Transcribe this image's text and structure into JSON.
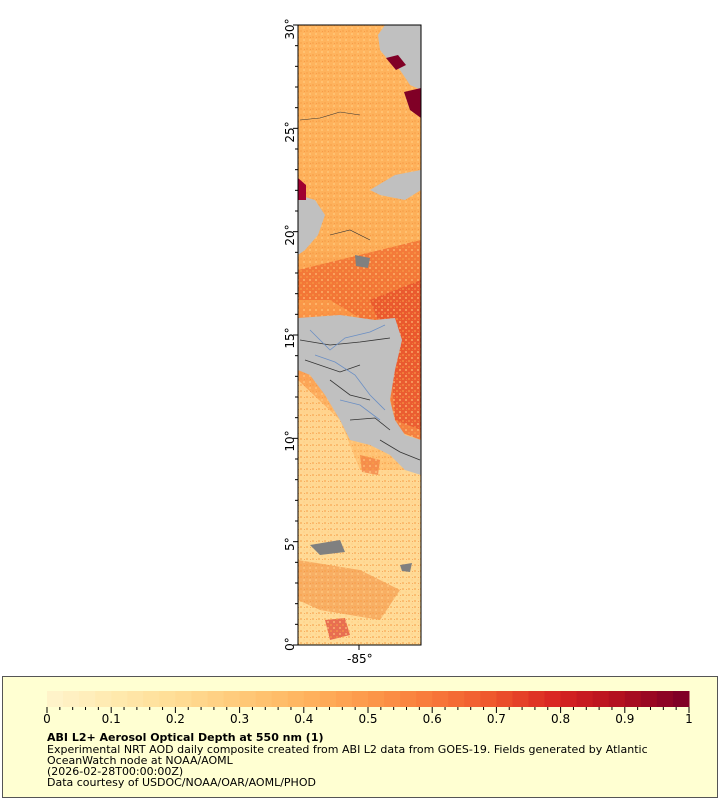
{
  "map": {
    "y_axis_labels": [
      "30°",
      "25°",
      "20°",
      "15°",
      "10°",
      "5°",
      "0°"
    ],
    "x_axis_labels": [
      "-85°"
    ],
    "land_color": "#c0c0c0",
    "border_color": "#333333",
    "river_color": "#6b8fc4"
  },
  "legend": {
    "ticks": [
      "0",
      "0.1",
      "0.2",
      "0.3",
      "0.4",
      "0.5",
      "0.6",
      "0.7",
      "0.8",
      "0.9",
      "1"
    ],
    "colors": [
      "#fff3c9",
      "#ffe9ad",
      "#ffdc93",
      "#ffc978",
      "#ffb45e",
      "#fd994a",
      "#f97a3a",
      "#ee562c",
      "#d92522",
      "#b3101f",
      "#800026"
    ],
    "title": "ABI L2+ Aerosol Optical Depth at 550 nm (1)",
    "line1": "Experimental NRT AOD daily composite created from ABI L2 data from GOES-19. Fields generated by Atlantic",
    "line2": "OceanWatch node at NOAA/AOML",
    "line3": "(2026-02-28T00:00:00Z)",
    "line4": "Data courtesy of USDOC/NOAA/OAR/AOML/PHOD"
  }
}
